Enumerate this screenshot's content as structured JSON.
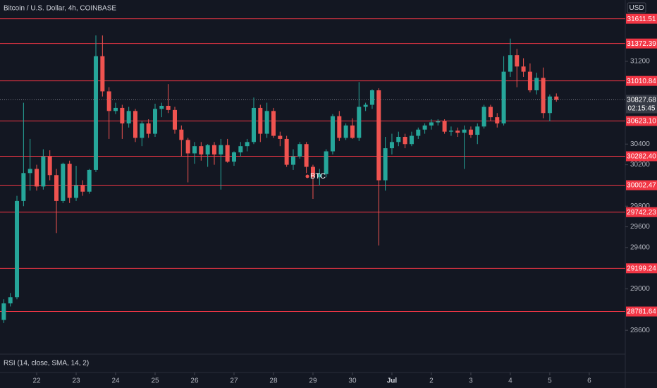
{
  "chart_data": {
    "type": "candlestick",
    "title": "Bitcoin / U.S. Dollar, 4h, COINBASE",
    "currency": "USD",
    "indicator": "RSI (14, close, SMA, 14, 2)",
    "annotation": "BTC",
    "up_color": "#26a69a",
    "down_color": "#ef5350",
    "level_color": "#f23645",
    "x": [
      -20,
      -16,
      -12,
      -8,
      -4,
      0,
      4,
      8,
      12,
      16,
      20,
      24,
      28,
      32,
      36,
      40,
      44,
      48,
      52,
      56,
      60,
      64,
      68,
      72,
      76,
      80,
      84,
      88,
      92,
      96,
      100,
      104,
      108,
      112,
      116,
      120,
      124,
      128,
      132,
      136,
      140,
      144,
      148,
      152,
      156,
      160,
      164,
      168,
      172,
      176,
      180,
      184,
      188,
      192,
      196,
      200,
      204,
      208,
      212,
      216,
      220,
      224,
      228,
      232,
      236,
      240,
      244,
      248,
      252,
      256,
      260,
      264,
      268,
      272,
      276,
      280,
      284,
      288,
      292,
      296,
      300,
      304,
      308,
      312,
      316
    ],
    "open": [
      28700,
      28860,
      28920,
      29850,
      30120,
      30160,
      29990,
      30280,
      30100,
      29850,
      30210,
      29880,
      30000,
      29940,
      30150,
      31250,
      30910,
      30720,
      30750,
      30600,
      30720,
      30460,
      30600,
      30500,
      30740,
      30770,
      30730,
      30540,
      30440,
      30310,
      30380,
      30300,
      30390,
      30300,
      30390,
      30230,
      30320,
      30380,
      30420,
      30750,
      30500,
      30720,
      30480,
      30450,
      30200,
      30280,
      30400,
      30180,
      30080,
      30110,
      30330,
      30670,
      30460,
      30580,
      30460,
      30760,
      30780,
      30920,
      30050,
      30360,
      30420,
      30470,
      30400,
      30480,
      30540,
      30580,
      30610,
      30620,
      30520,
      30530,
      30510,
      30540,
      30490,
      30570,
      30760,
      30660,
      30600,
      31100,
      31260,
      31150,
      31100,
      30920,
      31040,
      30700,
      30860
    ],
    "high": [
      28900,
      28960,
      29900,
      30800,
      30450,
      30200,
      30350,
      30340,
      30160,
      30220,
      30240,
      30190,
      30050,
      30160,
      31450,
      31450,
      30950,
      30800,
      30780,
      30760,
      30740,
      30620,
      30640,
      30790,
      30800,
      30980,
      30760,
      30580,
      30460,
      30420,
      30420,
      30400,
      30420,
      30450,
      30450,
      30330,
      30420,
      30450,
      30850,
      30780,
      30800,
      30750,
      30520,
      30480,
      30350,
      30420,
      30420,
      30200,
      30160,
      30350,
      30690,
      30720,
      30600,
      30650,
      31000,
      30800,
      30930,
      30940,
      30470,
      30500,
      30520,
      30500,
      30520,
      30560,
      30600,
      30640,
      30640,
      30640,
      30570,
      30560,
      30580,
      30570,
      30600,
      30780,
      30780,
      30700,
      31250,
      31420,
      31320,
      31230,
      31180,
      31090,
      31140,
      30880,
      30890
    ],
    "low": [
      28670,
      28830,
      28900,
      29800,
      29950,
      29950,
      29960,
      30050,
      29540,
      29830,
      29830,
      29850,
      29900,
      29920,
      30130,
      30860,
      30450,
      30690,
      30450,
      30560,
      30420,
      30380,
      30460,
      30470,
      30660,
      30700,
      30500,
      30280,
      30030,
      30210,
      30240,
      30180,
      30200,
      29960,
      30220,
      30190,
      30280,
      30330,
      30400,
      30420,
      30460,
      30460,
      30380,
      30180,
      30150,
      30260,
      30120,
      29870,
      30000,
      30080,
      30300,
      30430,
      30440,
      30450,
      30430,
      30720,
      30740,
      29420,
      29950,
      30300,
      30380,
      30360,
      30380,
      30450,
      30500,
      30540,
      30580,
      30500,
      30480,
      30470,
      30160,
      30460,
      30400,
      30550,
      30620,
      30560,
      30580,
      31050,
      30950,
      31050,
      30900,
      30880,
      30650,
      30620,
      30810
    ],
    "close": [
      28860,
      28920,
      29850,
      30120,
      30160,
      29990,
      30280,
      30100,
      29850,
      30210,
      29880,
      30000,
      29940,
      30150,
      31250,
      30910,
      30720,
      30750,
      30600,
      30720,
      30460,
      30600,
      30500,
      30740,
      30770,
      30730,
      30540,
      30440,
      30310,
      30380,
      30300,
      30390,
      30300,
      30390,
      30230,
      30320,
      30380,
      30420,
      30750,
      30500,
      30720,
      30480,
      30450,
      30200,
      30280,
      30400,
      30180,
      30080,
      30110,
      30330,
      30670,
      30460,
      30580,
      30460,
      30760,
      30780,
      30920,
      30050,
      30360,
      30420,
      30470,
      30400,
      30480,
      30540,
      30580,
      30610,
      30620,
      30520,
      30530,
      30510,
      30540,
      30490,
      30570,
      30760,
      30660,
      30600,
      31100,
      31260,
      31150,
      31100,
      30920,
      31040,
      30700,
      30860,
      30827.68
    ],
    "xlim": [
      -22.3,
      357.9
    ],
    "xticks": [
      {
        "value": 0,
        "label": "22"
      },
      {
        "value": 24,
        "label": "23"
      },
      {
        "value": 48,
        "label": "24"
      },
      {
        "value": 72,
        "label": "25"
      },
      {
        "value": 96,
        "label": "26"
      },
      {
        "value": 120,
        "label": "27"
      },
      {
        "value": 144,
        "label": "28"
      },
      {
        "value": 168,
        "label": "29"
      },
      {
        "value": 192,
        "label": "30"
      },
      {
        "value": 216,
        "label": "Jul"
      },
      {
        "value": 240,
        "label": "2"
      },
      {
        "value": 264,
        "label": "3"
      },
      {
        "value": 288,
        "label": "4"
      },
      {
        "value": 312,
        "label": "5"
      },
      {
        "value": 336,
        "label": "6"
      }
    ],
    "ylim": [
      28383,
      31793
    ],
    "yticks": [
      31200,
      30400,
      30200,
      29800,
      29600,
      29400,
      29000,
      28600
    ],
    "levels": [
      31611.51,
      31372.39,
      31010.84,
      {
        "value": 30623.1,
        "label": "30623.10"
      },
      {
        "value": 30282.4,
        "label": "30282.40"
      },
      30002.47,
      29742.23,
      29199.24,
      28781.64
    ],
    "last_price": 30827.68,
    "countdown": "02:15:45"
  }
}
